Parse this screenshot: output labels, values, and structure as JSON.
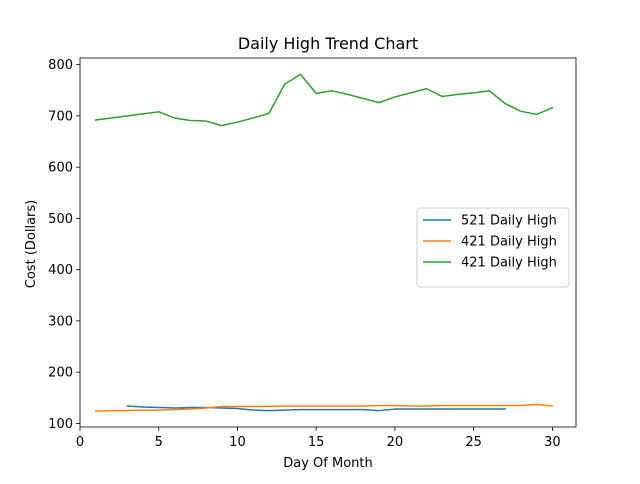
{
  "chart_data": {
    "type": "line",
    "title": "Daily High Trend Chart",
    "xlabel": "Day Of Month",
    "ylabel": "Cost (Dollars)",
    "xlim": [
      0,
      31.5
    ],
    "ylim": [
      93,
      813
    ],
    "xticks": [
      0,
      5,
      10,
      15,
      20,
      25,
      30
    ],
    "yticks": [
      100,
      200,
      300,
      400,
      500,
      600,
      700,
      800
    ],
    "legend_position": "center-right",
    "grid": false,
    "series": [
      {
        "name": "521 Daily High",
        "color": "#1f77b4",
        "x": [
          3,
          4,
          5,
          6,
          7,
          8,
          9,
          10,
          11,
          12,
          13,
          14,
          15,
          16,
          17,
          18,
          19,
          20,
          21,
          22,
          23,
          24,
          25,
          26,
          27
        ],
        "y": [
          134,
          132,
          131,
          130,
          131,
          131,
          130,
          129,
          126,
          125,
          126,
          127,
          127,
          127,
          127,
          127,
          125,
          128,
          128,
          128,
          128,
          128,
          128,
          128,
          128
        ]
      },
      {
        "name": "421 Daily High",
        "color": "#ff7f0e",
        "x": [
          1,
          2,
          3,
          4,
          5,
          6,
          7,
          8,
          9,
          10,
          11,
          12,
          13,
          14,
          15,
          16,
          17,
          18,
          19,
          20,
          21,
          22,
          23,
          24,
          25,
          26,
          27,
          28,
          29,
          30
        ],
        "y": [
          124,
          125,
          125,
          126,
          126,
          127,
          128,
          130,
          133,
          133,
          133,
          133,
          134,
          134,
          134,
          134,
          134,
          134,
          135,
          135,
          134,
          134,
          135,
          135,
          135,
          135,
          135,
          135,
          137,
          134
        ]
      },
      {
        "name": "421 Daily High",
        "color": "#2ca02c",
        "x": [
          1,
          2,
          3,
          4,
          5,
          6,
          7,
          8,
          9,
          10,
          11,
          12,
          13,
          14,
          15,
          16,
          17,
          18,
          19,
          20,
          21,
          22,
          23,
          24,
          25,
          26,
          27,
          28,
          29,
          30
        ],
        "y": [
          692,
          696,
          700,
          704,
          708,
          696,
          691,
          690,
          681,
          688,
          696,
          705,
          762,
          781,
          744,
          749,
          742,
          734,
          726,
          737,
          745,
          753,
          738,
          742,
          745,
          749,
          724,
          709,
          703,
          716
        ]
      }
    ]
  }
}
